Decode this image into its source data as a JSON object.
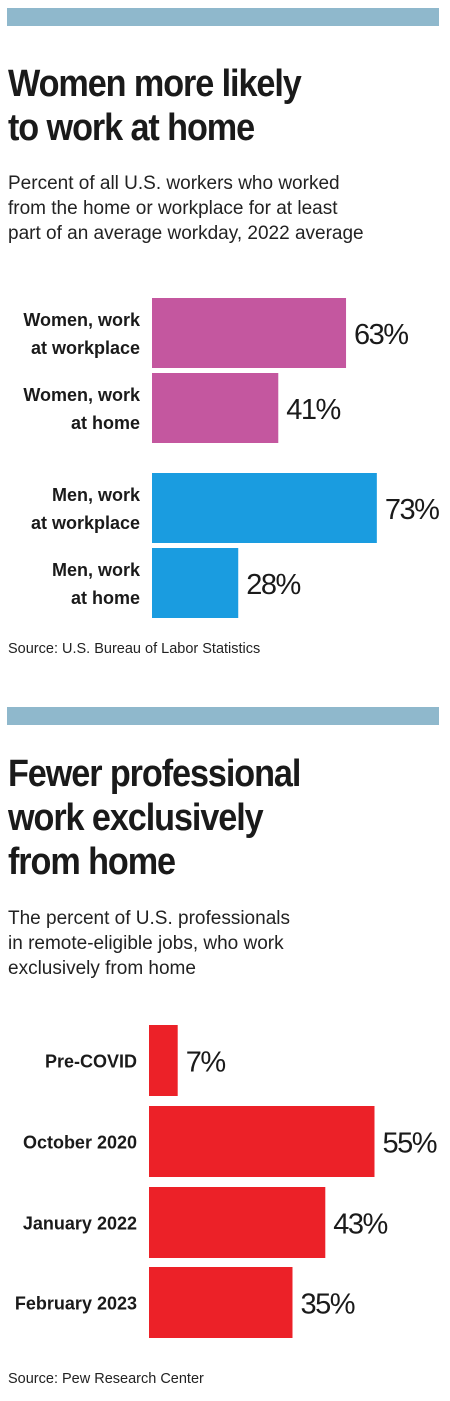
{
  "chart_data": [
    {
      "type": "bar",
      "orientation": "horizontal",
      "title": "Women more likely\nto work at home",
      "subtitle": "Percent of all U.S. workers who worked\nfrom the home or workplace for at least\npart of an average workday, 2022 average",
      "categories": [
        [
          "Women, work",
          "at workplace"
        ],
        [
          "Women, work",
          "at home"
        ],
        [
          "Men, work",
          "at workplace"
        ],
        [
          "Men, work",
          "at home"
        ]
      ],
      "values": [
        63,
        41,
        73,
        28
      ],
      "value_labels": [
        "63%",
        "41%",
        "73%",
        "28%"
      ],
      "bar_colors": [
        "#c4579f",
        "#c4579f",
        "#1a9ce0",
        "#1a9ce0"
      ],
      "source": "Source: U.S. Bureau of Labor Statistics"
    },
    {
      "type": "bar",
      "orientation": "horizontal",
      "title": "Fewer professional\nwork exclusively\nfrom home",
      "subtitle": "The percent of U.S. professionals\nin remote-eligible jobs, who work\nexclusively from home",
      "categories": [
        [
          "Pre-COVID"
        ],
        [
          "October 2020"
        ],
        [
          "January 2022"
        ],
        [
          "February 2023"
        ]
      ],
      "values": [
        7,
        55,
        43,
        35
      ],
      "value_labels": [
        "7%",
        "55%",
        "43%",
        "35%"
      ],
      "bar_colors": [
        "#ec2128",
        "#ec2128",
        "#ec2128",
        "#ec2128"
      ],
      "source": "Source: Pew Research Center"
    }
  ],
  "colors": {
    "rule": "#8fb8cc",
    "women": "#c4579f",
    "men": "#1a9ce0",
    "professionals": "#ec2128"
  }
}
